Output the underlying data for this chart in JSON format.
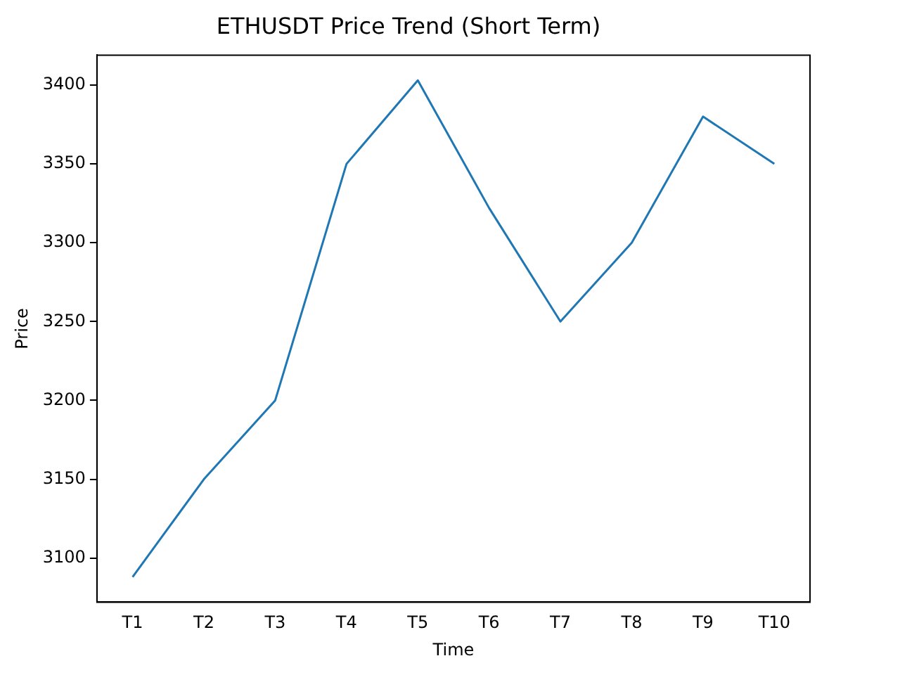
{
  "chart_data": {
    "type": "line",
    "title": "ETHUSDT Price Trend (Short Term)",
    "xlabel": "Time",
    "ylabel": "Price",
    "categories": [
      "T1",
      "T2",
      "T3",
      "T4",
      "T5",
      "T6",
      "T7",
      "T8",
      "T9",
      "T10"
    ],
    "series": [
      {
        "color": "#1f77b4",
        "values": [
          3088,
          3150,
          3200,
          3350,
          3403,
          3322,
          3250,
          3300,
          3380,
          3350
        ]
      }
    ],
    "ylim": [
      3072,
      3419
    ],
    "yticks": [
      3100,
      3150,
      3200,
      3250,
      3300,
      3350,
      3400
    ],
    "grid": false,
    "legend": false
  }
}
